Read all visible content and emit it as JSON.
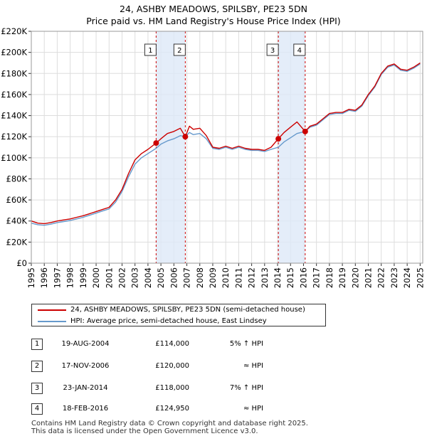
{
  "title_line1": "24, ASHBY MEADOWS, SPILSBY, PE23 5DN",
  "title_line2": "Price paid vs. HM Land Registry's House Price Index (HPI)",
  "colors": {
    "property": "#cc0000",
    "hpi": "#6699cc",
    "shade": "#dde8f8",
    "marker_line": "#cc0000",
    "grid": "#dddddd"
  },
  "legend": {
    "property_label": "24, ASHBY MEADOWS, SPILSBY, PE23 5DN (semi-detached house)",
    "hpi_label": "HPI: Average price, semi-detached house, East Lindsey"
  },
  "sales": [
    {
      "num": "1",
      "date": "19-AUG-2004",
      "price": "£114,000",
      "relation": "5% ↑ HPI"
    },
    {
      "num": "2",
      "date": "17-NOV-2006",
      "price": "£120,000",
      "relation": "≈ HPI"
    },
    {
      "num": "3",
      "date": "23-JAN-2014",
      "price": "£118,000",
      "relation": "7% ↑ HPI"
    },
    {
      "num": "4",
      "date": "18-FEB-2016",
      "price": "£124,950",
      "relation": "≈ HPI"
    }
  ],
  "footer_line1": "Contains HM Land Registry data © Crown copyright and database right 2025.",
  "footer_line2": "This data is licensed under the Open Government Licence v3.0.",
  "chart_data": {
    "type": "line",
    "title": "24, ASHBY MEADOWS, SPILSBY, PE23 5DN — Price paid vs. HM Land Registry's House Price Index (HPI)",
    "xlabel": "",
    "ylabel": "",
    "xlim": [
      1995,
      2025.2
    ],
    "ylim": [
      0,
      220000
    ],
    "x_ticks": [
      1995,
      1996,
      1997,
      1998,
      1999,
      2000,
      2001,
      2002,
      2003,
      2004,
      2005,
      2006,
      2007,
      2008,
      2009,
      2010,
      2011,
      2012,
      2013,
      2014,
      2015,
      2016,
      2017,
      2018,
      2019,
      2020,
      2021,
      2022,
      2023,
      2024,
      2025
    ],
    "y_ticks": [
      0,
      20000,
      40000,
      60000,
      80000,
      100000,
      120000,
      140000,
      160000,
      180000,
      200000,
      220000
    ],
    "y_tick_labels": [
      "£0",
      "£20K",
      "£40K",
      "£60K",
      "£80K",
      "£100K",
      "£120K",
      "£140K",
      "£160K",
      "£180K",
      "£200K",
      "£220K"
    ],
    "grid": true,
    "shaded_periods": [
      [
        2004.63,
        2006.88
      ],
      [
        2014.06,
        2016.13
      ]
    ],
    "sale_markers": [
      {
        "label": "1",
        "x": 2004.63,
        "y": 114000
      },
      {
        "label": "2",
        "x": 2006.88,
        "y": 120000
      },
      {
        "label": "3",
        "x": 2014.06,
        "y": 118000
      },
      {
        "label": "4",
        "x": 2016.13,
        "y": 124950
      }
    ],
    "series": [
      {
        "name": "24, ASHBY MEADOWS, SPILSBY, PE23 5DN (semi-detached house)",
        "color": "#cc0000",
        "x": [
          1995,
          1995.5,
          1996,
          1996.5,
          1997,
          1997.5,
          1998,
          1998.5,
          1999,
          1999.5,
          2000,
          2000.5,
          2001,
          2001.5,
          2002,
          2002.5,
          2003,
          2003.5,
          2004,
          2004.63,
          2005,
          2005.5,
          2006,
          2006.5,
          2006.88,
          2007.2,
          2007.5,
          2008,
          2008.5,
          2009,
          2009.5,
          2010,
          2010.5,
          2011,
          2011.5,
          2012,
          2012.5,
          2013,
          2013.5,
          2014.06,
          2014.5,
          2015,
          2015.5,
          2016.13,
          2016.5,
          2017,
          2017.5,
          2018,
          2018.5,
          2019,
          2019.5,
          2020,
          2020.5,
          2021,
          2021.5,
          2022,
          2022.5,
          2023,
          2023.5,
          2024,
          2024.5,
          2025
        ],
        "values": [
          40000,
          38000,
          37500,
          38500,
          40000,
          41000,
          42000,
          43500,
          45000,
          47000,
          49000,
          51000,
          53000,
          60000,
          70000,
          85000,
          98000,
          104000,
          108000,
          114000,
          118000,
          123000,
          125000,
          128000,
          120000,
          130000,
          127000,
          128000,
          121000,
          110000,
          109000,
          111000,
          109000,
          111000,
          109000,
          108000,
          108000,
          107000,
          110000,
          118000,
          124000,
          129000,
          134000,
          124950,
          130000,
          132000,
          137000,
          142000,
          143000,
          143000,
          146000,
          145000,
          150000,
          160000,
          168000,
          180000,
          187000,
          189000,
          184000,
          183000,
          186000,
          190000
        ]
      },
      {
        "name": "HPI: Average price, semi-detached house, East Lindsey",
        "color": "#6699cc",
        "x": [
          1995,
          1995.5,
          1996,
          1996.5,
          1997,
          1997.5,
          1998,
          1998.5,
          1999,
          1999.5,
          2000,
          2000.5,
          2001,
          2001.5,
          2002,
          2002.5,
          2003,
          2003.5,
          2004,
          2004.63,
          2005,
          2005.5,
          2006,
          2006.5,
          2006.88,
          2007.2,
          2007.5,
          2008,
          2008.5,
          2009,
          2009.5,
          2010,
          2010.5,
          2011,
          2011.5,
          2012,
          2012.5,
          2013,
          2013.5,
          2014.06,
          2014.5,
          2015,
          2015.5,
          2016.13,
          2016.5,
          2017,
          2017.5,
          2018,
          2018.5,
          2019,
          2019.5,
          2020,
          2020.5,
          2021,
          2021.5,
          2022,
          2022.5,
          2023,
          2023.5,
          2024,
          2024.5,
          2025
        ],
        "values": [
          38000,
          36500,
          36000,
          37000,
          38500,
          39500,
          40500,
          42000,
          43500,
          45500,
          47500,
          49500,
          51500,
          58000,
          68000,
          82000,
          94000,
          100000,
          104000,
          109000,
          113000,
          116000,
          118000,
          121000,
          120000,
          124000,
          122000,
          123000,
          118000,
          109000,
          108000,
          110000,
          108000,
          110000,
          108000,
          107000,
          107000,
          106000,
          108000,
          110000,
          115000,
          119000,
          123000,
          125000,
          129000,
          131000,
          136000,
          141000,
          142000,
          142000,
          145000,
          144000,
          149000,
          159000,
          167000,
          179000,
          186000,
          188000,
          183000,
          182000,
          185000,
          189000
        ]
      }
    ]
  }
}
